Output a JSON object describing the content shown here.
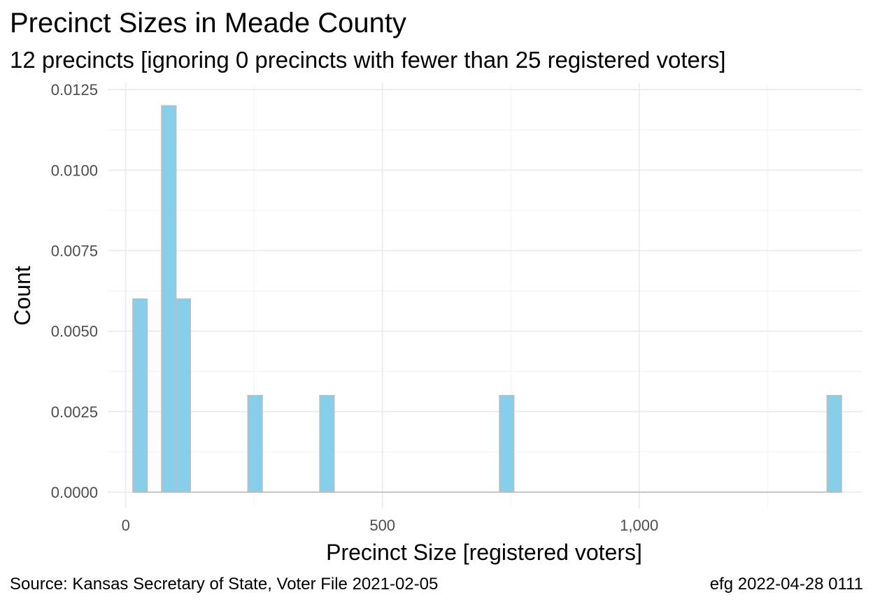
{
  "title": "Precinct Sizes in Meade County",
  "subtitle": "12 precincts [ignoring 0 precincts with fewer than 25 registered voters]",
  "caption_left": "Source:  Kansas Secretary of State, Voter File  2021-02-05",
  "caption_right": "efg 2022-04-28 0111",
  "colors": {
    "bar_fill": "#87CEEB",
    "bar_stroke": "#BDBDBD",
    "grid_major": "#EBEBEB",
    "grid_minor": "#F4F4F4",
    "tick_text": "#4D4D4D"
  },
  "chart_data": {
    "type": "bar",
    "title": "Precinct Sizes in Meade County",
    "subtitle": "12 precincts [ignoring 0 precincts with fewer than 25 registered voters]",
    "xlabel": "Precinct Size [registered voters]",
    "ylabel": "Count",
    "xlim": [
      -35,
      1435
    ],
    "ylim": [
      -0.0005,
      0.0127
    ],
    "x_ticks": [
      0,
      500,
      1000
    ],
    "x_tick_labels": [
      "0",
      "500",
      "1,000"
    ],
    "y_ticks": [
      0,
      0.0025,
      0.005,
      0.0075,
      0.01,
      0.0125
    ],
    "y_tick_labels": [
      "0.0000",
      "0.0025",
      "0.0050",
      "0.0075",
      "0.0100",
      "0.0125"
    ],
    "bin_width": 28,
    "bins": [
      {
        "x_start": 14,
        "x_end": 42,
        "value": 0.006
      },
      {
        "x_start": 42,
        "x_end": 70,
        "value": 0
      },
      {
        "x_start": 70,
        "x_end": 98,
        "value": 0.012
      },
      {
        "x_start": 98,
        "x_end": 126,
        "value": 0.006
      },
      {
        "x_start": 238,
        "x_end": 266,
        "value": 0.003
      },
      {
        "x_start": 378,
        "x_end": 406,
        "value": 0.003
      },
      {
        "x_start": 728,
        "x_end": 756,
        "value": 0.003
      },
      {
        "x_start": 1366,
        "x_end": 1394,
        "value": 0.003
      }
    ],
    "grid": true,
    "legend": "none"
  }
}
